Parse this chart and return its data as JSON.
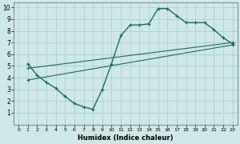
{
  "xlabel": "Humidex (Indice chaleur)",
  "bg_color": "#cde8e5",
  "grid_color": "#aed0cc",
  "line_color": "#1e6b5e",
  "xlim": [
    -0.5,
    23.5
  ],
  "ylim": [
    0,
    10.4
  ],
  "xticks": [
    0,
    1,
    2,
    3,
    4,
    5,
    6,
    7,
    8,
    9,
    10,
    11,
    12,
    13,
    14,
    15,
    16,
    17,
    18,
    19,
    20,
    21,
    22,
    23
  ],
  "yticks": [
    1,
    2,
    3,
    4,
    5,
    6,
    7,
    8,
    9,
    10
  ],
  "curve_x": [
    1,
    2,
    3,
    4,
    5,
    6,
    7,
    8,
    9,
    10,
    11,
    12,
    13,
    14,
    15,
    16,
    17,
    18,
    19,
    20,
    21,
    22,
    23
  ],
  "curve_y": [
    5.2,
    4.2,
    3.6,
    3.1,
    2.4,
    1.8,
    1.5,
    1.3,
    3.0,
    5.2,
    7.6,
    8.5,
    8.5,
    8.6,
    9.9,
    9.9,
    9.3,
    8.7,
    8.7,
    8.7,
    8.1,
    7.4,
    6.9
  ],
  "trend1_x": [
    1,
    23
  ],
  "trend1_y": [
    4.8,
    7.0
  ],
  "trend2_x": [
    1,
    23
  ],
  "trend2_y": [
    3.8,
    6.8
  ]
}
